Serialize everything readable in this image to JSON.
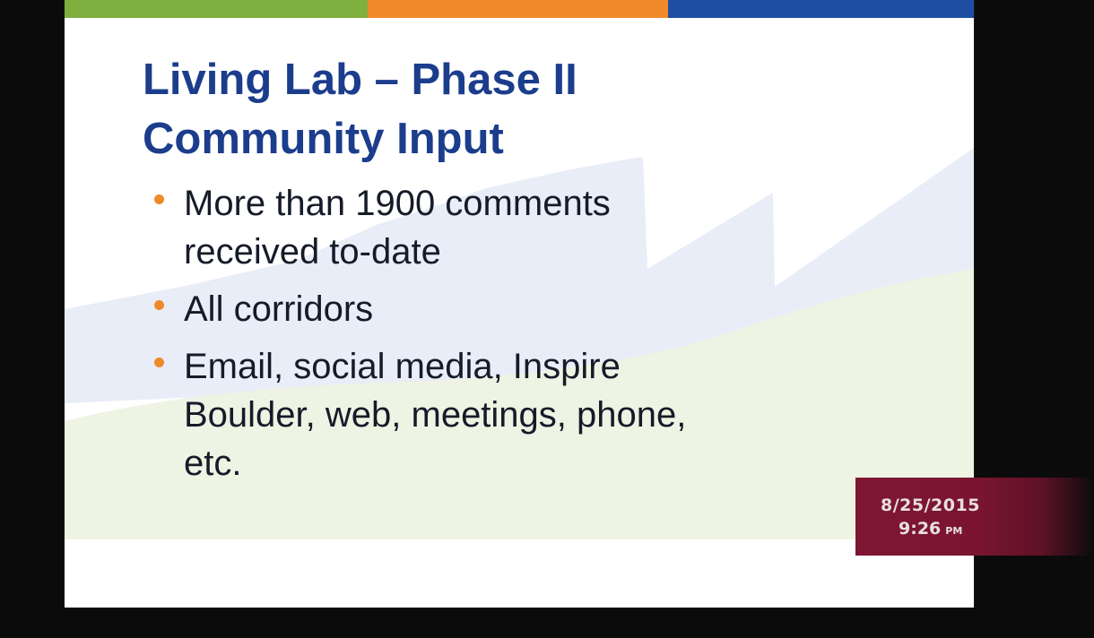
{
  "slide": {
    "title_line1": "Living Lab – Phase II",
    "title_line2": "Community Input",
    "bullets": [
      {
        "lines": [
          "More than 1900 comments",
          "received to-date"
        ]
      },
      {
        "lines": [
          "All corridors"
        ]
      },
      {
        "lines": [
          "Email, social media, Inspire",
          "Boulder, web, meetings, phone,",
          "etc."
        ]
      }
    ]
  },
  "timestamp": {
    "date": "8/25/2015",
    "time": "9:26",
    "ampm": "PM"
  },
  "colors": {
    "title": "#1b3d8c",
    "bullet_dot": "#ef8a2b",
    "bar_green": "#7fb03f",
    "bar_orange": "#f08a2a",
    "bar_blue": "#1d4ea1",
    "stamp_bg": "#7a1430"
  }
}
